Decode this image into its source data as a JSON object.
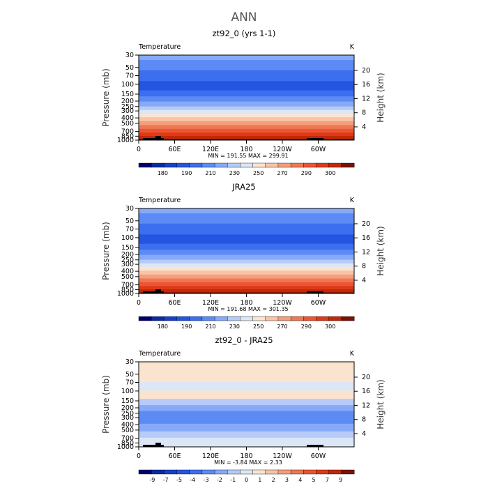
{
  "chart_data": {
    "type": "heatmap",
    "title": "ANN",
    "panels": [
      {
        "title": "zt92_0 (yrs 1-1)",
        "left_label": "Temperature",
        "right_label": "K",
        "xlabel": "",
        "ylabel": "Pressure (mb)",
        "y2label": "Height (km)",
        "stats": "MIN = 191.55   MAX = 299.91",
        "x_ticks": [
          "0",
          "60E",
          "120E",
          "180",
          "120W",
          "60W"
        ],
        "y_ticks": [
          "30",
          "50",
          "70",
          "100",
          "150",
          "200",
          "250",
          "300",
          "400",
          "500",
          "700",
          "850",
          "1000"
        ],
        "y2_ticks": [
          "20",
          "16",
          "12",
          "8",
          "4"
        ],
        "colorbar_labels": [
          "180",
          "190",
          "210",
          "230",
          "250",
          "270",
          "290",
          "300"
        ],
        "colors": [
          "#00006e",
          "#0a2aa3",
          "#1440cc",
          "#2455e0",
          "#3c6ef0",
          "#5c8bf5",
          "#86aaf8",
          "#b6cbf8",
          "#dbe6f6",
          "#fbe4cf",
          "#f8c4a6",
          "#f49e7c",
          "#ef7753",
          "#eb5533",
          "#de3a17",
          "#c02808",
          "#7a1203"
        ],
        "profile": [
          {
            "p": 30,
            "bin": 6
          },
          {
            "p": 45,
            "bin": 5
          },
          {
            "p": 70,
            "bin": 4
          },
          {
            "p": 110,
            "bin": 3
          },
          {
            "p": 150,
            "bin": 4
          },
          {
            "p": 180,
            "bin": 5
          },
          {
            "p": 230,
            "bin": 6
          },
          {
            "p": 270,
            "bin": 7
          },
          {
            "p": 310,
            "bin": 8
          },
          {
            "p": 360,
            "bin": 9
          },
          {
            "p": 420,
            "bin": 10
          },
          {
            "p": 500,
            "bin": 11
          },
          {
            "p": 580,
            "bin": 12
          },
          {
            "p": 680,
            "bin": 13
          },
          {
            "p": 790,
            "bin": 14
          },
          {
            "p": 900,
            "bin": 15
          },
          {
            "p": 1000,
            "bin": 16
          }
        ]
      },
      {
        "title": "JRA25",
        "left_label": "Temperature",
        "right_label": "K",
        "xlabel": "",
        "ylabel": "Pressure (mb)",
        "y2label": "Height (km)",
        "stats": "MIN = 191.68   MAX = 301.35",
        "x_ticks": [
          "0",
          "60E",
          "120E",
          "180",
          "120W",
          "60W"
        ],
        "y_ticks": [
          "30",
          "50",
          "70",
          "100",
          "150",
          "200",
          "250",
          "300",
          "400",
          "500",
          "700",
          "850",
          "1000"
        ],
        "y2_ticks": [
          "20",
          "16",
          "12",
          "8",
          "4"
        ],
        "colorbar_labels": [
          "180",
          "190",
          "210",
          "230",
          "250",
          "270",
          "290",
          "300"
        ],
        "colors": [
          "#00006e",
          "#0a2aa3",
          "#1440cc",
          "#2455e0",
          "#3c6ef0",
          "#5c8bf5",
          "#86aaf8",
          "#b6cbf8",
          "#dbe6f6",
          "#fbe4cf",
          "#f8c4a6",
          "#f49e7c",
          "#ef7753",
          "#eb5533",
          "#de3a17",
          "#c02808",
          "#7a1203"
        ],
        "profile": [
          {
            "p": 30,
            "bin": 6
          },
          {
            "p": 45,
            "bin": 5
          },
          {
            "p": 70,
            "bin": 4
          },
          {
            "p": 110,
            "bin": 3
          },
          {
            "p": 150,
            "bin": 4
          },
          {
            "p": 180,
            "bin": 5
          },
          {
            "p": 230,
            "bin": 6
          },
          {
            "p": 270,
            "bin": 7
          },
          {
            "p": 310,
            "bin": 8
          },
          {
            "p": 360,
            "bin": 9
          },
          {
            "p": 420,
            "bin": 10
          },
          {
            "p": 500,
            "bin": 11
          },
          {
            "p": 580,
            "bin": 12
          },
          {
            "p": 680,
            "bin": 13
          },
          {
            "p": 790,
            "bin": 14
          },
          {
            "p": 900,
            "bin": 15
          },
          {
            "p": 1000,
            "bin": 16
          }
        ]
      },
      {
        "title": "zt92_0 - JRA25",
        "left_label": "Temperature",
        "right_label": "K",
        "xlabel": "",
        "ylabel": "Pressure (mb)",
        "y2label": "Height (km)",
        "stats": "MIN =  -3.84   MAX =   2.33",
        "x_ticks": [
          "0",
          "60E",
          "120E",
          "180",
          "120W",
          "60W"
        ],
        "y_ticks": [
          "30",
          "50",
          "70",
          "100",
          "150",
          "200",
          "250",
          "300",
          "400",
          "500",
          "700",
          "850",
          "1000"
        ],
        "y2_ticks": [
          "20",
          "16",
          "12",
          "8",
          "4"
        ],
        "colorbar_labels": [
          "-9",
          "-7",
          "-5",
          "-4",
          "-3",
          "-2",
          "-1",
          "0",
          "1",
          "2",
          "3",
          "4",
          "5",
          "7",
          "9"
        ],
        "colors": [
          "#00006e",
          "#0a2aa3",
          "#1440cc",
          "#2455e0",
          "#3c6ef0",
          "#5c8bf5",
          "#86aaf8",
          "#b6cbf8",
          "#dbe6f6",
          "#fbe4cf",
          "#f8c4a6",
          "#f49e7c",
          "#ef7753",
          "#eb5533",
          "#de3a17",
          "#c02808",
          "#7a1203"
        ],
        "profile": [
          {
            "p": 30,
            "bin": 9
          },
          {
            "p": 60,
            "bin": 9
          },
          {
            "p": 80,
            "bin": 8
          },
          {
            "p": 120,
            "bin": 9
          },
          {
            "p": 160,
            "bin": 7
          },
          {
            "p": 200,
            "bin": 6
          },
          {
            "p": 260,
            "bin": 5
          },
          {
            "p": 330,
            "bin": 5
          },
          {
            "p": 450,
            "bin": 6
          },
          {
            "p": 620,
            "bin": 7
          },
          {
            "p": 760,
            "bin": 8
          },
          {
            "p": 1000,
            "bin": 8
          }
        ]
      }
    ]
  }
}
